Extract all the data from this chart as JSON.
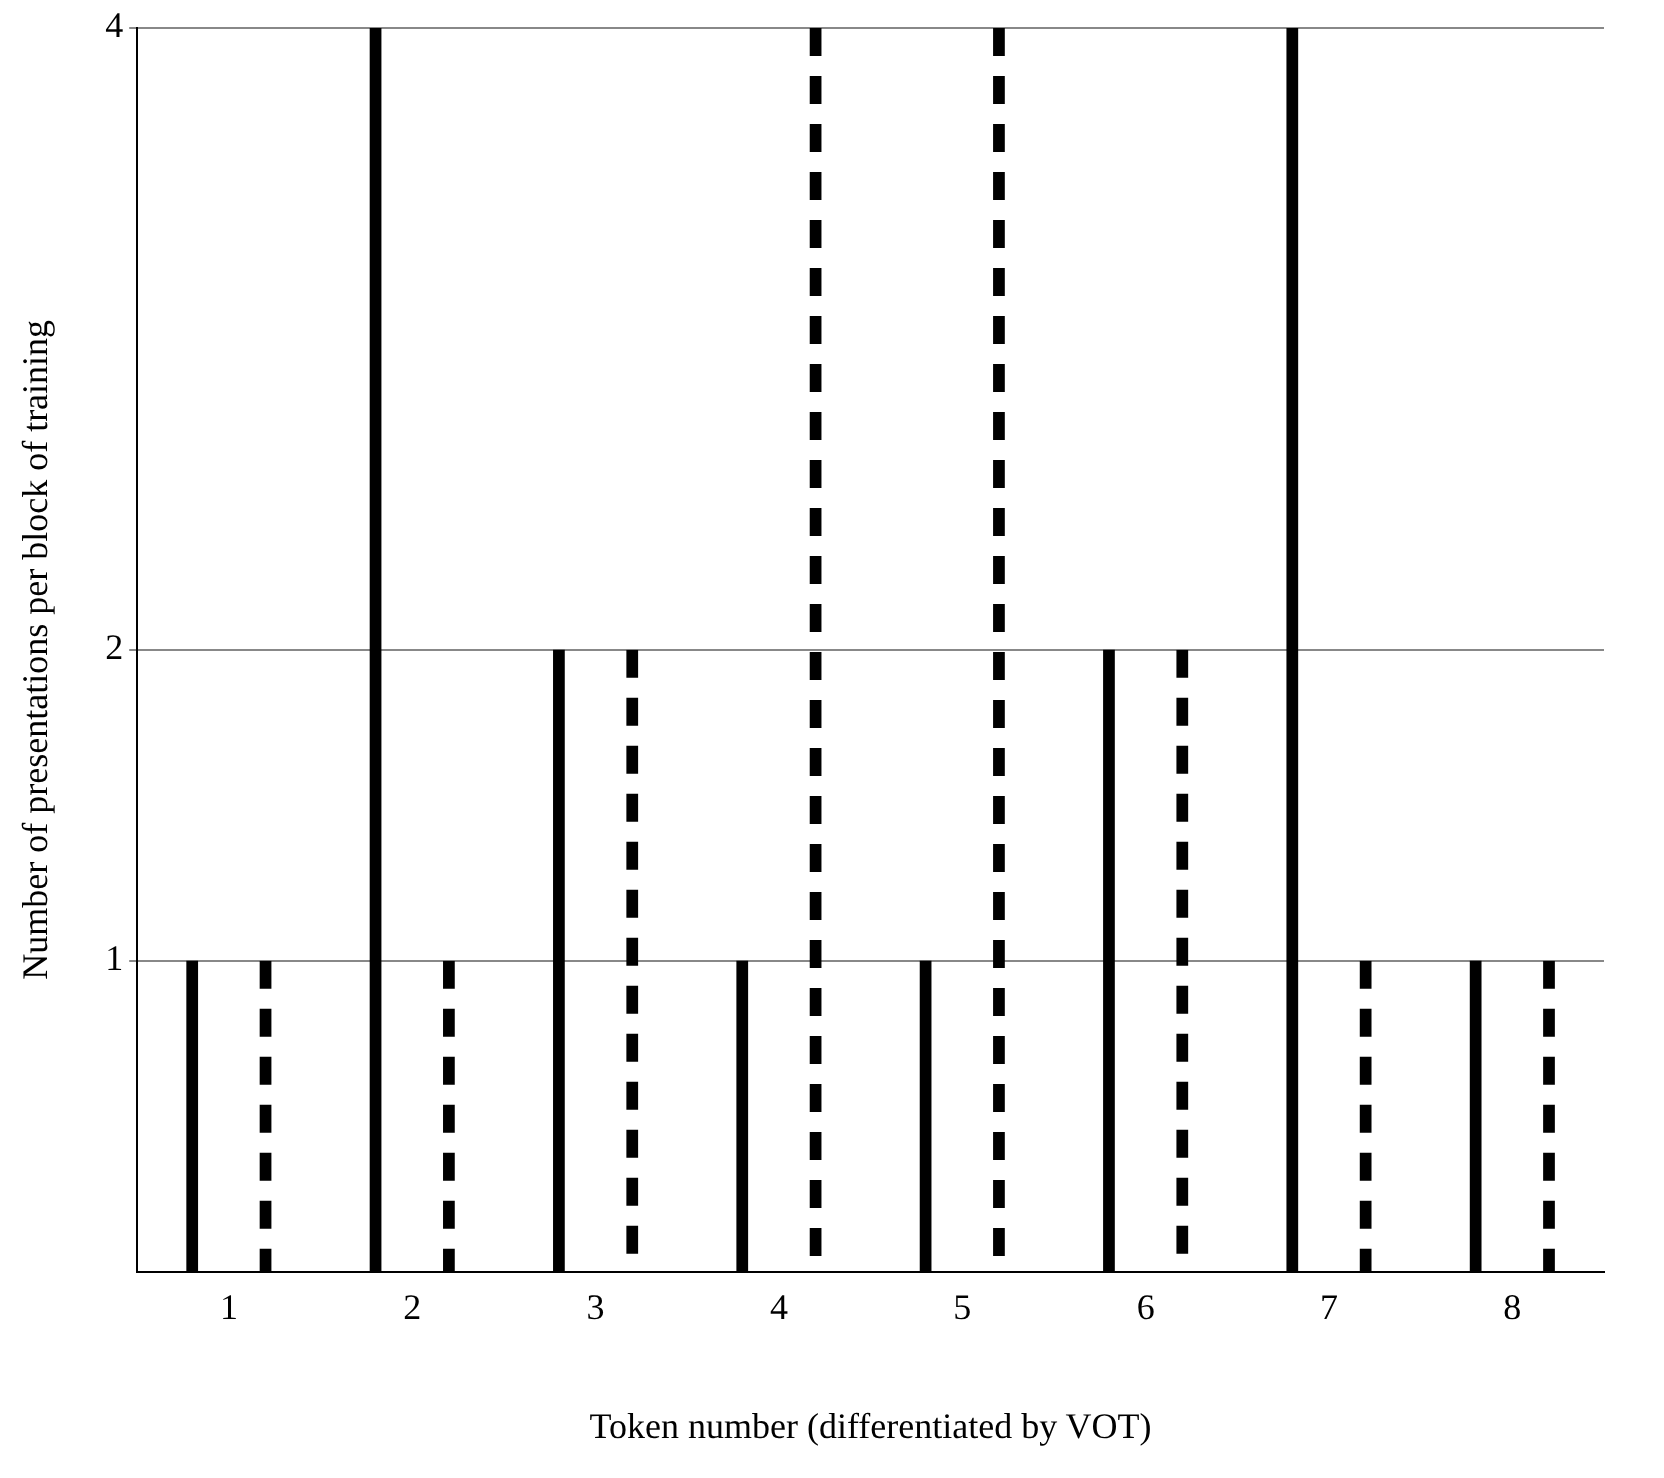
{
  "chart_data": {
    "type": "bar",
    "xlabel": "Token number (differentiated by VOT)",
    "ylabel": "Number of presentations per block of training",
    "categories": [
      "1",
      "2",
      "3",
      "4",
      "5",
      "6",
      "7",
      "8"
    ],
    "series": [
      {
        "color": "#000000",
        "line_style": "solid",
        "values": [
          1,
          4,
          2,
          1,
          1,
          2,
          4,
          1
        ]
      },
      {
        "color": "#000000",
        "line_style": "dashed",
        "values": [
          1,
          1,
          2,
          4,
          4,
          2,
          1,
          1
        ]
      }
    ],
    "ylim": [
      0,
      4
    ],
    "yticks": [
      1,
      2,
      4
    ],
    "grid": "y",
    "legend": false
  }
}
